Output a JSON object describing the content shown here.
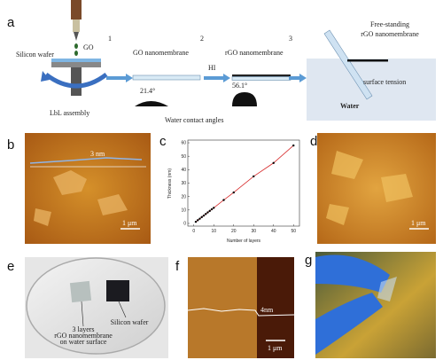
{
  "panel_labels": [
    "a",
    "b",
    "c",
    "d",
    "e",
    "f",
    "g"
  ],
  "panel_a": {
    "silicon_wafer": "Silicon wafer",
    "go": "GO",
    "lbl": "LbL assembly",
    "steps": [
      "1",
      "2",
      "3"
    ],
    "go_membrane": "GO nanomembrane",
    "rgo_membrane": "rGO nanomembrane",
    "hi": "HI",
    "free_standing": [
      "Free-standing",
      "rGO nanomembrane"
    ],
    "surface_tension": "surface tension",
    "water": "Water",
    "angle_go": "21.4°",
    "angle_rgo": "56.1°",
    "contact_angles": "Water contact angles"
  },
  "panel_b": {
    "profile_label": "3 nm",
    "scale_bar": "1 μm"
  },
  "chart_data": {
    "type": "scatter",
    "x_label": "Number of layers",
    "y_label": "Thickness (nm)",
    "x": [
      1,
      2,
      3,
      4,
      5,
      6,
      7,
      8,
      9,
      10,
      15,
      20,
      30,
      40,
      50
    ],
    "series": [
      {
        "color": "#d62728",
        "marker_color": "#000000",
        "values": [
          1.2,
          2.4,
          3.5,
          4.7,
          5.8,
          7,
          8.2,
          9.3,
          10.5,
          11.6,
          17.4,
          23,
          35,
          45,
          58
        ]
      }
    ],
    "xlim": [
      -3,
      53
    ],
    "ylim": [
      -2,
      62
    ],
    "xticks": [
      0,
      10,
      20,
      30,
      40,
      50
    ],
    "yticks": [
      0,
      10,
      20,
      30,
      40,
      50,
      60
    ]
  },
  "panel_d": {
    "scale_bar": "1 μm"
  },
  "panel_e": {
    "membrane_label": [
      "3 layers",
      "rGO nanomembrane",
      "on water surface"
    ],
    "wafer_label": "Silicon wafer"
  },
  "panel_f": {
    "profile_label": "4nm",
    "scale_bar": "1 μm"
  }
}
